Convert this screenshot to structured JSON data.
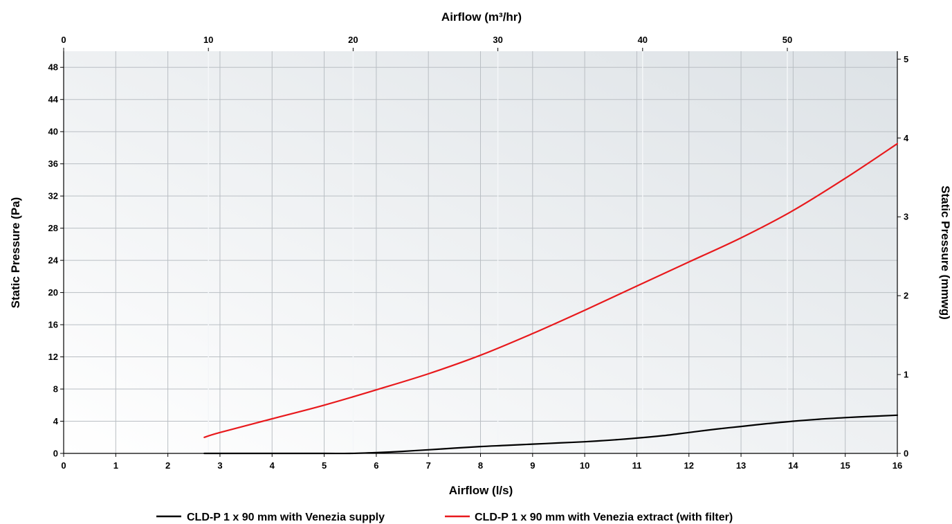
{
  "chart_data": {
    "type": "line",
    "x_axis_bottom": {
      "label": "Airflow (l/s)",
      "range": [
        0,
        16
      ],
      "ticks": [
        0,
        1,
        2,
        3,
        4,
        5,
        6,
        7,
        8,
        9,
        10,
        11,
        12,
        13,
        14,
        15,
        16
      ]
    },
    "x_axis_top": {
      "label": "Airflow (m³/hr)",
      "range": [
        0,
        57.6
      ],
      "ticks": [
        0,
        10,
        20,
        30,
        40,
        50
      ]
    },
    "y_axis_left": {
      "label": "Static Pressure (Pa)",
      "range": [
        0,
        50
      ],
      "ticks": [
        0,
        4,
        8,
        12,
        16,
        20,
        24,
        28,
        32,
        36,
        40,
        44,
        48
      ]
    },
    "y_axis_right": {
      "label": "Static Pressure (mmwg)",
      "range": [
        0,
        5.1
      ],
      "ticks": [
        0,
        1,
        2,
        3,
        4,
        5
      ]
    },
    "grid": true,
    "legend_position": "bottom",
    "series": [
      {
        "name": "CLD-P 1 x 90 mm with Venezia supply",
        "color": "#000000",
        "x": [
          2.7,
          3.3,
          4,
          5,
          5.5,
          6,
          6.5,
          7,
          7.5,
          8,
          8.5,
          9,
          9.5,
          10,
          10.5,
          11,
          11.5,
          12,
          12.5,
          13,
          13.5,
          14,
          14.5,
          15,
          15.5,
          16
        ],
        "y": [
          0,
          0,
          0,
          0,
          0,
          0.1,
          0.25,
          0.45,
          0.65,
          0.85,
          1.0,
          1.15,
          1.3,
          1.45,
          1.65,
          1.9,
          2.2,
          2.6,
          3.0,
          3.35,
          3.7,
          4.0,
          4.25,
          4.45,
          4.6,
          4.75
        ]
      },
      {
        "name": "CLD-P 1 x 90 mm with Venezia extract (with filter)",
        "color": "#e8191c",
        "x": [
          2.7,
          3,
          4,
          5,
          6,
          7,
          8,
          9,
          10,
          11,
          12,
          13,
          14,
          15,
          16
        ],
        "y": [
          2.0,
          2.6,
          4.3,
          6.0,
          7.9,
          9.9,
          12.2,
          14.9,
          17.8,
          20.8,
          23.8,
          26.8,
          30.2,
          34.2,
          38.5
        ]
      }
    ]
  }
}
